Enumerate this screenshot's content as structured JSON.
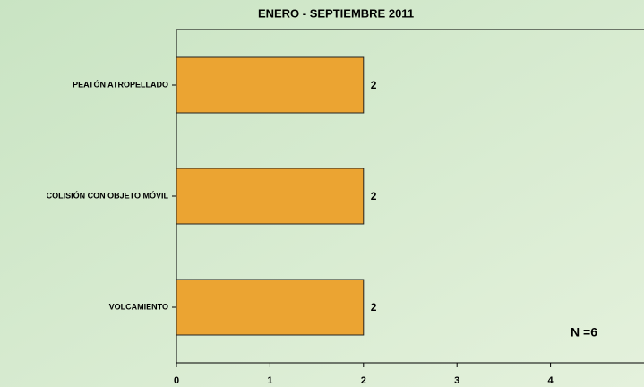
{
  "chart_data": {
    "type": "bar",
    "orientation": "horizontal",
    "title": "ENERO - SEPTIEMBRE 2011",
    "categories": [
      "PEATÓN ATROPELLADO",
      "COLISIÓN CON OBJETO MÓVIL",
      "VOLCAMIENTO"
    ],
    "values": [
      2,
      2,
      2
    ],
    "color": "#eba432",
    "xlim": [
      0,
      5
    ],
    "xticks": [
      0,
      1,
      2,
      3,
      4
    ],
    "annotation": "N =6"
  }
}
